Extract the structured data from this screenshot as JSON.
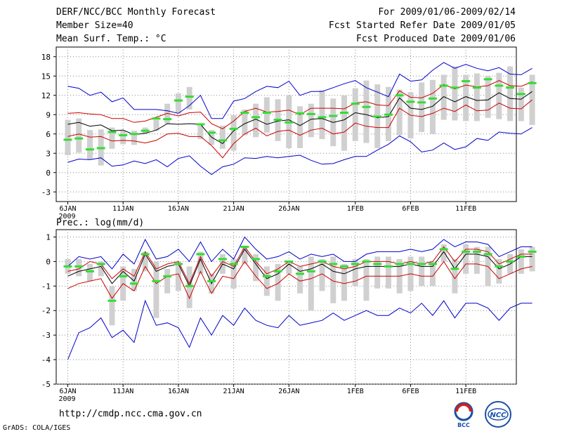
{
  "header": {
    "title": "DERF/NCC/BCC Monthly Forecast",
    "member_size": "Member Size=40",
    "variable": "Mean Surf. Temp.: °C",
    "period": "For 2009/01/06-2009/02/14",
    "started": "Fcst Started Refer Date 2009/01/05",
    "produced": "Fcst Produced Date 2009/01/06"
  },
  "footer": {
    "url": "http://cmdp.ncc.cma.gov.cn",
    "credit": "GrADS: COLA/IGES",
    "logo_left_text": "BCC",
    "logo_right_text": "NCC"
  },
  "colors": {
    "envelope": "#0000cc",
    "spread": "#cc0000",
    "mean": "#000000",
    "box": "#d0d0d0",
    "marker": "#33dd33",
    "grid": "#888888"
  },
  "chart_data": [
    {
      "type": "line",
      "title": "Mean Surf. Temp.: °C",
      "x_tick_labels": [
        "6JAN",
        "11JAN",
        "16JAN",
        "21JAN",
        "26JAN",
        "1FEB",
        "6FEB",
        "11FEB"
      ],
      "x_tick_days": [
        0,
        5,
        10,
        15,
        20,
        26,
        31,
        36
      ],
      "x_year_label": "2009",
      "ylim": [
        -4.5,
        19.5
      ],
      "y_ticks": [
        18,
        15,
        12,
        9,
        6,
        3,
        0,
        -3
      ],
      "y_tick_labels": [
        "18",
        "15",
        "12",
        "9",
        "6",
        "3",
        "0",
        "-3"
      ],
      "series": [
        {
          "name": "max",
          "values": [
            13.4,
            13.1,
            12.0,
            12.5,
            11.0,
            11.6,
            9.8,
            9.8,
            9.8,
            9.6,
            9.2,
            10.4,
            12.0,
            8.4,
            8.4,
            11.1,
            11.5,
            12.6,
            13.4,
            13.2,
            14.2,
            12.0,
            12.6,
            12.6,
            13.2,
            13.8,
            14.3,
            13.2,
            12.5,
            11.8,
            15.3,
            14.2,
            14.4,
            15.9,
            17.1,
            16.2,
            16.8,
            16.2,
            15.8,
            16.3,
            15.3,
            15.2,
            16.2
          ]
        },
        {
          "name": "p90",
          "values": [
            9.2,
            9.3,
            9.1,
            9.0,
            8.4,
            8.4,
            7.8,
            8.0,
            8.6,
            9.2,
            8.8,
            9.3,
            9.4,
            7.6,
            6.8,
            8.0,
            9.5,
            10.0,
            9.4,
            9.5,
            9.7,
            9.0,
            10.0,
            10.0,
            10.0,
            9.9,
            10.8,
            11.0,
            10.5,
            10.4,
            12.7,
            11.7,
            11.6,
            12.3,
            13.7,
            13.0,
            13.6,
            13.3,
            13.5,
            14.3,
            13.5,
            13.4,
            14.1
          ]
        },
        {
          "name": "mean",
          "values": [
            7.5,
            7.8,
            7.2,
            7.4,
            6.5,
            6.6,
            5.9,
            6.1,
            6.6,
            7.6,
            7.5,
            7.6,
            7.5,
            5.5,
            4.5,
            6.5,
            7.6,
            8.3,
            7.5,
            8.0,
            8.2,
            7.3,
            8.3,
            8.4,
            7.8,
            8.2,
            9.3,
            9.0,
            8.5,
            8.7,
            11.6,
            10.0,
            9.8,
            10.3,
            11.8,
            11.0,
            11.8,
            11.2,
            11.3,
            12.4,
            11.5,
            11.4,
            12.6
          ]
        },
        {
          "name": "p10",
          "values": [
            5.6,
            6.0,
            5.5,
            5.6,
            4.9,
            5.0,
            4.9,
            4.6,
            5.0,
            6.0,
            6.1,
            5.6,
            5.6,
            4.2,
            2.3,
            4.5,
            6.0,
            6.9,
            5.7,
            6.4,
            6.6,
            5.8,
            6.6,
            6.9,
            6.0,
            6.3,
            7.7,
            7.2,
            7.0,
            7.0,
            10.0,
            8.9,
            8.7,
            9.2,
            10.0,
            9.5,
            10.5,
            9.6,
            9.7,
            10.8,
            10.0,
            9.9,
            11.3
          ]
        },
        {
          "name": "min",
          "values": [
            1.6,
            2.1,
            2.0,
            2.3,
            1.0,
            1.2,
            1.8,
            1.4,
            2.0,
            0.9,
            2.2,
            2.6,
            1.0,
            -0.3,
            0.9,
            1.3,
            2.3,
            2.2,
            2.5,
            2.3,
            2.5,
            2.7,
            1.9,
            1.3,
            1.4,
            2.0,
            2.5,
            2.5,
            3.5,
            4.4,
            5.7,
            4.8,
            3.2,
            3.5,
            4.6,
            3.6,
            4.0,
            5.3,
            5.0,
            6.3,
            6.1,
            6.0,
            7.0
          ]
        },
        {
          "name": "box_top",
          "values": [
            8.2,
            8.4,
            6.6,
            6.7,
            7.0,
            6.5,
            6.5,
            7.0,
            8.2,
            10.7,
            12.3,
            13.3,
            7.3,
            6.6,
            7.3,
            8.9,
            9.8,
            10.7,
            11.7,
            11.4,
            12.0,
            10.3,
            10.7,
            12.8,
            11.5,
            12.0,
            13.1,
            14.3,
            13.7,
            13.3,
            12.9,
            12.5,
            14.0,
            14.4,
            15.2,
            16.5,
            15.2,
            15.4,
            15.0,
            15.5,
            16.5,
            13.2,
            15.2
          ]
        },
        {
          "name": "box_bottom",
          "values": [
            2.7,
            3.1,
            2.0,
            1.1,
            3.7,
            4.4,
            4.3,
            6.0,
            6.5,
            7.6,
            9.2,
            9.8,
            5.2,
            4.3,
            3.7,
            3.4,
            5.8,
            5.5,
            6.2,
            4.9,
            3.8,
            3.8,
            5.5,
            5.2,
            4.1,
            3.4,
            4.9,
            4.6,
            3.8,
            4.9,
            5.8,
            5.3,
            6.3,
            6.0,
            8.2,
            8.1,
            8.0,
            8.0,
            8.5,
            8.3,
            8.0,
            8.0,
            7.4
          ]
        },
        {
          "name": "observed",
          "values": [
            5.1,
            5.3,
            3.6,
            3.8,
            6.3,
            5.8,
            6.0,
            6.5,
            8.4,
            8.3,
            11.2,
            11.8,
            7.5,
            6.2,
            5.0,
            6.8,
            9.3,
            8.6,
            9.3,
            8.2,
            7.8,
            9.2,
            9.1,
            8.6,
            8.8,
            9.3,
            10.7,
            10.2,
            8.7,
            9.0,
            12.0,
            11.0,
            10.9,
            11.5,
            13.5,
            13.2,
            14.2,
            13.2,
            14.5,
            13.5,
            13.2,
            12.2,
            13.9
          ]
        }
      ]
    },
    {
      "type": "line",
      "title": "Prec.: log(mm/d)",
      "x_tick_labels": [
        "6JAN",
        "11JAN",
        "16JAN",
        "21JAN",
        "26JAN",
        "1FEB",
        "6FEB",
        "11FEB"
      ],
      "x_tick_days": [
        0,
        5,
        10,
        15,
        20,
        26,
        31,
        36
      ],
      "x_year_label": "2009",
      "ylim": [
        -5,
        1.3
      ],
      "y_ticks": [
        1,
        0,
        -1,
        -2,
        -3,
        -4,
        -5
      ],
      "y_tick_labels": [
        "1",
        "0",
        "-1",
        "-2",
        "-3",
        "-4",
        "-5"
      ],
      "series": [
        {
          "name": "max",
          "values": [
            -0.2,
            0.2,
            0.1,
            0.2,
            -0.3,
            0.3,
            -0.1,
            0.9,
            0.1,
            0.2,
            0.5,
            0.0,
            0.8,
            0.0,
            0.5,
            0.1,
            1.0,
            0.5,
            0.1,
            0.2,
            0.4,
            0.1,
            0.3,
            0.2,
            0.3,
            0.0,
            0.0,
            0.3,
            0.4,
            0.4,
            0.4,
            0.5,
            0.4,
            0.5,
            0.9,
            0.6,
            0.8,
            0.8,
            0.7,
            0.2,
            0.4,
            0.6,
            0.6
          ]
        },
        {
          "name": "p90",
          "values": [
            -0.4,
            -0.3,
            0.0,
            -0.1,
            -0.7,
            -0.3,
            -0.6,
            0.4,
            -0.3,
            -0.1,
            0.0,
            -0.9,
            0.2,
            -0.6,
            0.0,
            -0.2,
            0.6,
            0.0,
            -0.5,
            -0.3,
            0.0,
            -0.2,
            -0.1,
            0.0,
            -0.2,
            -0.3,
            -0.2,
            0.0,
            0.0,
            0.0,
            -0.1,
            0.0,
            -0.1,
            0.0,
            0.6,
            0.0,
            0.5,
            0.5,
            0.4,
            -0.1,
            0.1,
            0.3,
            0.3
          ]
        },
        {
          "name": "mean",
          "values": [
            -0.6,
            -0.4,
            -0.3,
            -0.2,
            -0.9,
            -0.4,
            -0.8,
            0.3,
            -0.4,
            -0.2,
            -0.1,
            -1.0,
            0.1,
            -0.9,
            -0.1,
            -0.3,
            0.5,
            -0.1,
            -0.7,
            -0.5,
            -0.1,
            -0.4,
            -0.3,
            -0.1,
            -0.4,
            -0.5,
            -0.3,
            -0.2,
            -0.2,
            -0.2,
            -0.2,
            -0.1,
            -0.2,
            -0.2,
            0.4,
            -0.3,
            0.3,
            0.3,
            0.2,
            -0.3,
            -0.1,
            0.2,
            0.2
          ]
        },
        {
          "name": "p10",
          "values": [
            -1.1,
            -0.9,
            -0.8,
            -0.7,
            -1.5,
            -0.9,
            -1.2,
            -0.2,
            -0.9,
            -0.6,
            -0.5,
            -1.5,
            -0.4,
            -1.3,
            -0.6,
            -0.7,
            0.0,
            -0.6,
            -1.1,
            -0.9,
            -0.5,
            -0.8,
            -0.7,
            -0.5,
            -0.8,
            -0.9,
            -0.8,
            -0.6,
            -0.6,
            -0.6,
            -0.6,
            -0.5,
            -0.6,
            -0.6,
            0.0,
            -0.7,
            -0.1,
            -0.1,
            -0.2,
            -0.7,
            -0.5,
            -0.3,
            -0.2
          ]
        },
        {
          "name": "min",
          "values": [
            -4.0,
            -2.9,
            -2.7,
            -2.3,
            -3.1,
            -2.8,
            -3.3,
            -1.6,
            -2.6,
            -2.5,
            -2.7,
            -3.5,
            -2.3,
            -3.0,
            -2.2,
            -2.6,
            -1.9,
            -2.4,
            -2.6,
            -2.7,
            -2.2,
            -2.6,
            -2.5,
            -2.4,
            -2.1,
            -2.4,
            -2.2,
            -2.0,
            -2.2,
            -2.2,
            -1.9,
            -2.1,
            -1.7,
            -2.2,
            -1.6,
            -2.3,
            -1.7,
            -1.7,
            -1.9,
            -2.4,
            -1.9,
            -1.7,
            -1.7
          ]
        },
        {
          "name": "box_top",
          "values": [
            0.1,
            0.1,
            -0.1,
            0.0,
            -1.0,
            -0.2,
            -0.3,
            0.4,
            0.0,
            -0.3,
            0.0,
            -0.2,
            0.4,
            -0.5,
            0.3,
            0.1,
            0.6,
            0.3,
            -0.2,
            -0.1,
            0.0,
            -0.2,
            0.2,
            0.1,
            0.2,
            -0.1,
            0.1,
            0.1,
            0.2,
            0.2,
            0.1,
            0.2,
            0.2,
            0.0,
            0.7,
            0.1,
            0.7,
            0.6,
            0.6,
            0.1,
            0.3,
            0.5,
            0.6
          ]
        },
        {
          "name": "box_bottom",
          "values": [
            -0.5,
            -0.6,
            -0.8,
            -0.6,
            -2.6,
            -1.6,
            -1.2,
            -0.4,
            -2.3,
            -1.3,
            -1.2,
            -1.9,
            -0.5,
            -1.3,
            -0.5,
            -1.1,
            -0.1,
            -0.8,
            -1.4,
            -1.6,
            -0.5,
            -1.3,
            -2.0,
            -1.2,
            -1.7,
            -1.6,
            -1.0,
            -1.6,
            -1.1,
            -1.1,
            -1.3,
            -1.2,
            -1.0,
            -1.0,
            0.0,
            -1.3,
            -0.5,
            -0.5,
            -1.0,
            -0.9,
            -0.5,
            -0.5,
            -0.4
          ]
        },
        {
          "name": "observed",
          "values": [
            -0.2,
            -0.2,
            -0.4,
            -0.1,
            -1.6,
            -0.6,
            -0.9,
            0.3,
            -0.8,
            -0.6,
            -0.1,
            -1.0,
            0.3,
            -0.8,
            0.1,
            -0.1,
            0.6,
            0.1,
            -0.6,
            -0.4,
            0.0,
            -0.5,
            -0.4,
            0.0,
            -0.1,
            -0.2,
            -0.1,
            0.0,
            -0.1,
            -0.2,
            -0.1,
            -0.1,
            -0.1,
            -0.1,
            0.5,
            -0.3,
            0.4,
            0.4,
            0.3,
            -0.2,
            0.0,
            0.2,
            0.4
          ]
        }
      ]
    }
  ]
}
